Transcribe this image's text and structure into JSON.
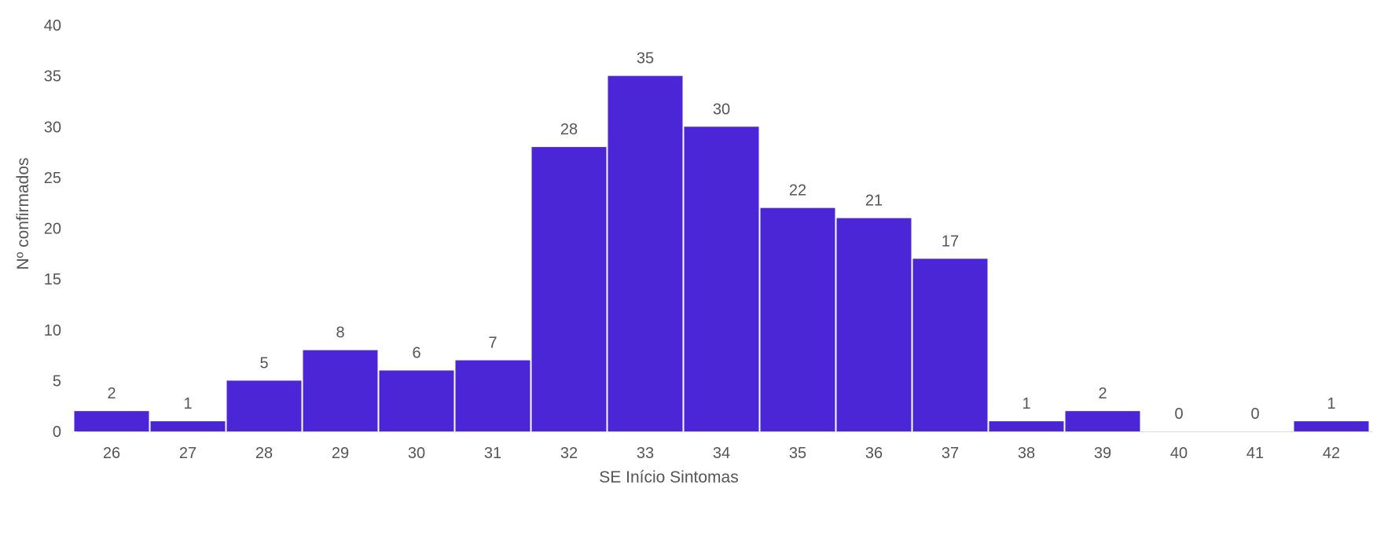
{
  "chart_data": {
    "type": "bar",
    "title": "",
    "xlabel": "SE Início Sintomas",
    "ylabel": "Nº confirmados",
    "categories": [
      "26",
      "27",
      "28",
      "29",
      "30",
      "31",
      "32",
      "33",
      "34",
      "35",
      "36",
      "37",
      "38",
      "39",
      "40",
      "41",
      "42"
    ],
    "values": [
      2,
      1,
      5,
      8,
      6,
      7,
      28,
      35,
      30,
      22,
      21,
      17,
      1,
      2,
      0,
      0,
      1
    ],
    "ylim": [
      0,
      40
    ],
    "yticks": [
      "0",
      "5",
      "10",
      "15",
      "20",
      "25",
      "30",
      "35",
      "40"
    ],
    "grid": false,
    "legend": "none",
    "bar_color": "#4a26d6"
  }
}
